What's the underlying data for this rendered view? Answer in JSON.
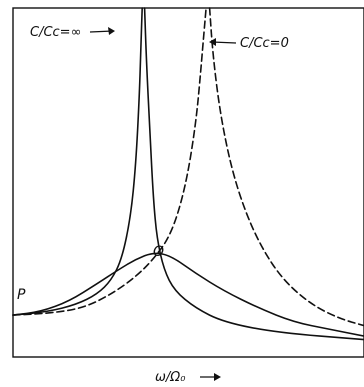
{
  "chart_data": {
    "type": "line",
    "title": "",
    "xlabel": "ω/Ω₀",
    "ylabel": "",
    "grid": false,
    "legend": "none",
    "annotations": [
      {
        "id": "cc-infinity",
        "text": "C/Cc=∞",
        "target": "undamped-curve"
      },
      {
        "id": "cc-zero",
        "text": "C/Cc=0",
        "target": "zero-coupling-curve"
      },
      {
        "id": "point-o",
        "text": "O"
      },
      {
        "id": "point-p",
        "text": "P"
      }
    ],
    "series": [
      {
        "style": "solid",
        "points": [
          [
            0.0,
            0.12
          ],
          [
            0.1,
            0.13
          ],
          [
            0.18,
            0.15
          ],
          [
            0.24,
            0.18
          ],
          [
            0.28,
            0.22
          ],
          [
            0.31,
            0.28
          ],
          [
            0.335,
            0.4
          ],
          [
            0.35,
            0.55
          ],
          [
            0.36,
            0.75
          ],
          [
            0.365,
            0.9
          ],
          [
            0.368,
            1.0
          ]
        ]
      },
      {
        "style": "solid",
        "points": [
          [
            0.375,
            1.0
          ],
          [
            0.38,
            0.85
          ],
          [
            0.39,
            0.65
          ],
          [
            0.4,
            0.45
          ],
          [
            0.41,
            0.34
          ],
          [
            0.43,
            0.25
          ],
          [
            0.46,
            0.19
          ],
          [
            0.52,
            0.14
          ],
          [
            0.6,
            0.1
          ],
          [
            0.75,
            0.07
          ],
          [
            1.0,
            0.05
          ]
        ]
      },
      {
        "style": "solid",
        "points": [
          [
            0.0,
            0.12
          ],
          [
            0.08,
            0.13
          ],
          [
            0.16,
            0.16
          ],
          [
            0.24,
            0.21
          ],
          [
            0.3,
            0.25
          ],
          [
            0.35,
            0.28
          ],
          [
            0.4,
            0.3
          ],
          [
            0.45,
            0.29
          ],
          [
            0.52,
            0.24
          ],
          [
            0.6,
            0.19
          ],
          [
            0.7,
            0.14
          ],
          [
            0.8,
            0.1
          ],
          [
            0.9,
            0.08
          ],
          [
            1.0,
            0.06
          ]
        ]
      },
      {
        "style": "dashed",
        "points": [
          [
            0.0,
            0.12
          ],
          [
            0.1,
            0.125
          ],
          [
            0.2,
            0.14
          ],
          [
            0.28,
            0.18
          ],
          [
            0.35,
            0.23
          ],
          [
            0.4,
            0.28
          ],
          [
            0.45,
            0.35
          ],
          [
            0.49,
            0.48
          ],
          [
            0.52,
            0.66
          ],
          [
            0.535,
            0.82
          ],
          [
            0.545,
            0.94
          ],
          [
            0.55,
            1.0
          ]
        ]
      },
      {
        "style": "dashed",
        "points": [
          [
            0.56,
            1.0
          ],
          [
            0.57,
            0.86
          ],
          [
            0.59,
            0.7
          ],
          [
            0.62,
            0.55
          ],
          [
            0.66,
            0.42
          ],
          [
            0.71,
            0.31
          ],
          [
            0.77,
            0.22
          ],
          [
            0.85,
            0.15
          ],
          [
            0.93,
            0.11
          ],
          [
            1.0,
            0.09
          ]
        ]
      }
    ]
  }
}
